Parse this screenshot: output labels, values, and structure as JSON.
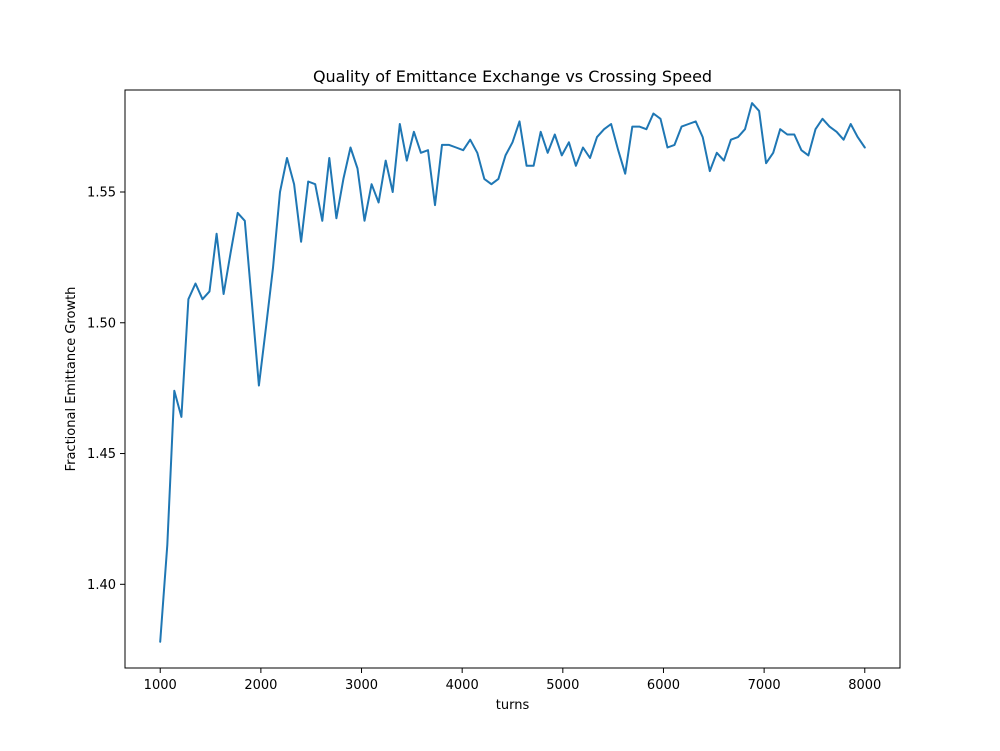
{
  "chart_data": {
    "type": "line",
    "title": "Quality of Emittance Exchange vs Crossing Speed",
    "xlabel": "turns",
    "ylabel": "Fractional Emittance Growth",
    "xlim": [
      650,
      8350
    ],
    "ylim": [
      1.368,
      1.589
    ],
    "x_ticks": [
      1000,
      2000,
      3000,
      4000,
      5000,
      6000,
      7000,
      8000
    ],
    "y_ticks": [
      1.4,
      1.45,
      1.5,
      1.55
    ],
    "y_tick_labels": [
      "1.40",
      "1.45",
      "1.50",
      "1.55"
    ],
    "grid": false,
    "legend": "none",
    "line_color": "#1f77b4",
    "series": [
      {
        "x": [
          1000,
          1070,
          1140,
          1210,
          1280,
          1350,
          1420,
          1490,
          1560,
          1630,
          1700,
          1770,
          1840,
          1910,
          1980,
          2050,
          2120,
          2190,
          2260,
          2330,
          2400,
          2470,
          2540,
          2610,
          2680,
          2750,
          2820,
          2890,
          2960,
          3030,
          3100,
          3170,
          3240,
          3310,
          3380,
          3450,
          3520,
          3590,
          3660,
          3730,
          3800,
          3870,
          3940,
          4010,
          4080,
          4150,
          4220,
          4290,
          4360,
          4430,
          4500,
          4570,
          4640,
          4710,
          4780,
          4850,
          4920,
          4990,
          5060,
          5130,
          5200,
          5270,
          5340,
          5410,
          5480,
          5550,
          5620,
          5690,
          5760,
          5830,
          5900,
          5970,
          6040,
          6110,
          6180,
          6250,
          6320,
          6390,
          6460,
          6530,
          6600,
          6670,
          6740,
          6810,
          6880,
          6950,
          7020,
          7090,
          7160,
          7230,
          7300,
          7370,
          7440,
          7510,
          7580,
          7650,
          7720,
          7790,
          7860,
          7930,
          8000
        ],
        "y": [
          1.378,
          1.415,
          1.474,
          1.464,
          1.509,
          1.515,
          1.509,
          1.512,
          1.534,
          1.511,
          1.527,
          1.542,
          1.539,
          1.508,
          1.476,
          1.498,
          1.521,
          1.55,
          1.563,
          1.553,
          1.531,
          1.554,
          1.553,
          1.539,
          1.563,
          1.54,
          1.555,
          1.567,
          1.559,
          1.539,
          1.553,
          1.546,
          1.562,
          1.55,
          1.576,
          1.562,
          1.573,
          1.565,
          1.566,
          1.545,
          1.568,
          1.568,
          1.567,
          1.566,
          1.57,
          1.565,
          1.555,
          1.553,
          1.555,
          1.564,
          1.569,
          1.577,
          1.56,
          1.56,
          1.573,
          1.565,
          1.572,
          1.564,
          1.569,
          1.56,
          1.567,
          1.563,
          1.571,
          1.574,
          1.576,
          1.566,
          1.557,
          1.575,
          1.575,
          1.574,
          1.58,
          1.578,
          1.567,
          1.568,
          1.575,
          1.576,
          1.577,
          1.571,
          1.558,
          1.565,
          1.562,
          1.57,
          1.571,
          1.574,
          1.584,
          1.581,
          1.561,
          1.565,
          1.574,
          1.572,
          1.572,
          1.566,
          1.564,
          1.574,
          1.578,
          1.575,
          1.573,
          1.57,
          1.576,
          1.571,
          1.567
        ]
      }
    ]
  }
}
